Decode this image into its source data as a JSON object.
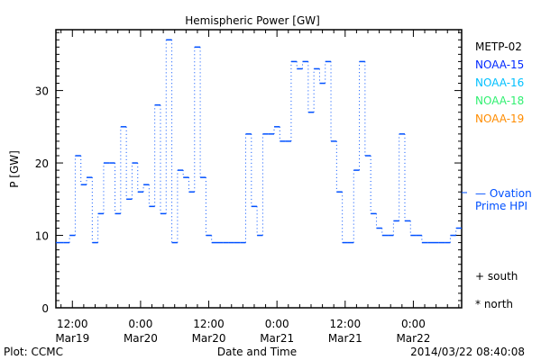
{
  "chart_data": {
    "type": "line",
    "title": "Hemispheric Power [GW]",
    "xlabel": "Date and Time",
    "ylabel": "P [GW]",
    "ylim": [
      0,
      38.4
    ],
    "xlim_hours_from_Mar19_0000": [
      9.1,
      80.5
    ],
    "y_ticks": [
      0,
      10,
      20,
      30
    ],
    "x_ticks": [
      {
        "hour": 12,
        "time": "12:00",
        "date": "Mar19"
      },
      {
        "hour": 24,
        "time": "0:00",
        "date": "Mar20"
      },
      {
        "hour": 36,
        "time": "12:00",
        "date": "Mar20"
      },
      {
        "hour": 48,
        "time": "0:00",
        "date": "Mar21"
      },
      {
        "hour": 60,
        "time": "12:00",
        "date": "Mar21"
      },
      {
        "hour": 72,
        "time": "0:00",
        "date": "Mar22"
      }
    ],
    "series": [
      {
        "name": "Ovation Prime HPI",
        "color": "#0050ff",
        "style": "step",
        "start_hour": 9.5,
        "step_hours": 1,
        "values": [
          9,
          9,
          10,
          21,
          17,
          18,
          9,
          13,
          20,
          20,
          13,
          25,
          15,
          20,
          16,
          17,
          14,
          28,
          13,
          37,
          9,
          19,
          18,
          16,
          36,
          18,
          10,
          9,
          9,
          9,
          9,
          9,
          9,
          24,
          14,
          10,
          24,
          24,
          25,
          23,
          23,
          34,
          33,
          34,
          27,
          33,
          31,
          34,
          23,
          16,
          9,
          9,
          19,
          34,
          21,
          13,
          11,
          10,
          10,
          12,
          24,
          12,
          10,
          10,
          9,
          9,
          9,
          9,
          9,
          10,
          11,
          13
        ]
      }
    ],
    "current_value": 15.8,
    "legend": [
      {
        "label": "METP-02",
        "color": "#000000"
      },
      {
        "label": "NOAA-15",
        "color": "#0028ff"
      },
      {
        "label": "NOAA-16",
        "color": "#00c0ff"
      },
      {
        "label": "NOAA-18",
        "color": "#30f070"
      },
      {
        "label": "NOAA-19",
        "color": "#ff8c00"
      }
    ],
    "model_label_1": "— Ovation",
    "model_label_2": "Prime HPI",
    "marker_south": "+ south",
    "marker_north": "* north"
  },
  "footer": {
    "left": "Plot: CCMC",
    "timestamp": "2014/03/22 08:40:08"
  }
}
